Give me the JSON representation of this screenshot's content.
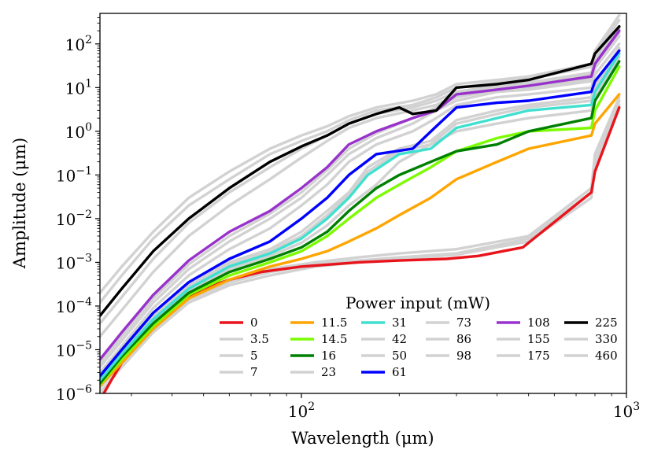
{
  "chart_data": {
    "type": "line",
    "xscale": "log",
    "yscale": "log",
    "xlabel": "Wavelength (μm)",
    "ylabel": "Amplitude (μm)",
    "xlim": [
      24,
      1000
    ],
    "ylim": [
      1e-06,
      500
    ],
    "x_ticks": [
      {
        "value": 100,
        "base": "10",
        "exp": "2"
      },
      {
        "value": 1000,
        "base": "10",
        "exp": "3"
      }
    ],
    "y_ticks": [
      {
        "value": 1e-06,
        "base": "10",
        "exp": "−6"
      },
      {
        "value": 1e-05,
        "base": "10",
        "exp": "−5"
      },
      {
        "value": 0.0001,
        "base": "10",
        "exp": "−4"
      },
      {
        "value": 0.001,
        "base": "10",
        "exp": "−3"
      },
      {
        "value": 0.01,
        "base": "10",
        "exp": "−2"
      },
      {
        "value": 0.1,
        "base": "10",
        "exp": "−1"
      },
      {
        "value": 1,
        "base": "10",
        "exp": "0"
      },
      {
        "value": 10,
        "base": "10",
        "exp": "1"
      },
      {
        "value": 100,
        "base": "10",
        "exp": "2"
      }
    ],
    "legend": {
      "title": "Power input (mW)",
      "placement": "lower-right",
      "columns": [
        [
          "0",
          "3.5",
          "5",
          "7"
        ],
        [
          "11.5",
          "14.5",
          "16",
          "23"
        ],
        [
          "31",
          "42",
          "50",
          "61"
        ],
        [
          "73",
          "86",
          "98"
        ],
        [
          "108",
          "155",
          "175"
        ],
        [
          "225",
          "330",
          "460"
        ]
      ]
    },
    "series": [
      {
        "name": "0",
        "color": "#e8141c",
        "highlight": true,
        "x": [
          24,
          26,
          28,
          32,
          36,
          42,
          50,
          60,
          75,
          100,
          150,
          200,
          280,
          350,
          480,
          780,
          800,
          950
        ],
        "y": [
          7e-07,
          2e-06,
          5e-06,
          1.5e-05,
          4e-05,
          0.00012,
          0.00025,
          0.0004,
          0.0006,
          0.0008,
          0.001,
          0.0011,
          0.0012,
          0.0014,
          0.0022,
          0.04,
          0.12,
          3.5
        ]
      },
      {
        "name": "3.5",
        "color": "#d2d2d2",
        "highlight": false,
        "x": [
          24,
          28,
          35,
          45,
          60,
          80,
          110,
          150,
          200,
          300,
          500,
          780,
          800,
          950
        ],
        "y": [
          1e-06,
          4e-06,
          2.5e-05,
          0.00012,
          0.0003,
          0.0005,
          0.0008,
          0.001,
          0.0012,
          0.0015,
          0.003,
          0.03,
          0.15,
          4
        ]
      },
      {
        "name": "5",
        "color": "#d2d2d2",
        "highlight": false,
        "x": [
          24,
          28,
          35,
          45,
          60,
          80,
          110,
          150,
          200,
          300,
          500,
          780,
          800,
          950
        ],
        "y": [
          1.3e-06,
          5e-06,
          3e-05,
          0.00014,
          0.00035,
          0.0006,
          0.0009,
          0.0011,
          0.0013,
          0.0016,
          0.0035,
          0.04,
          0.2,
          5
        ]
      },
      {
        "name": "7",
        "color": "#d2d2d2",
        "highlight": false,
        "x": [
          24,
          28,
          35,
          45,
          60,
          80,
          110,
          150,
          200,
          300,
          500,
          780,
          800,
          950
        ],
        "y": [
          1.6e-06,
          6e-06,
          3.5e-05,
          0.00016,
          0.0004,
          0.0007,
          0.001,
          0.0013,
          0.0016,
          0.002,
          0.004,
          0.05,
          0.3,
          6
        ]
      },
      {
        "name": "11.5",
        "color": "#ffa500",
        "highlight": true,
        "x": [
          24,
          28,
          35,
          45,
          60,
          80,
          100,
          120,
          140,
          170,
          200,
          250,
          300,
          400,
          500,
          780,
          800,
          950
        ],
        "y": [
          1.5e-06,
          5e-06,
          3e-05,
          0.00015,
          0.0004,
          0.0008,
          0.0012,
          0.0018,
          0.003,
          0.006,
          0.012,
          0.03,
          0.08,
          0.2,
          0.4,
          0.8,
          1.5,
          7
        ]
      },
      {
        "name": "14.5",
        "color": "#7cfc00",
        "highlight": true,
        "x": [
          24,
          28,
          35,
          45,
          60,
          80,
          100,
          120,
          140,
          170,
          200,
          250,
          300,
          400,
          500,
          780,
          800,
          950
        ],
        "y": [
          1.6e-06,
          6e-06,
          3.5e-05,
          0.00018,
          0.0005,
          0.001,
          0.0018,
          0.004,
          0.01,
          0.03,
          0.06,
          0.15,
          0.35,
          0.7,
          1,
          1.2,
          3,
          30
        ]
      },
      {
        "name": "16",
        "color": "#008000",
        "highlight": true,
        "x": [
          24,
          28,
          35,
          45,
          60,
          80,
          100,
          120,
          140,
          170,
          200,
          250,
          300,
          400,
          500,
          780,
          800,
          950
        ],
        "y": [
          1.7e-06,
          7e-06,
          4e-05,
          0.0002,
          0.0006,
          0.0012,
          0.0022,
          0.005,
          0.015,
          0.05,
          0.1,
          0.2,
          0.35,
          0.5,
          1,
          2,
          5,
          40
        ]
      },
      {
        "name": "23",
        "color": "#d2d2d2",
        "highlight": false,
        "x": [
          24,
          28,
          35,
          45,
          60,
          80,
          100,
          120,
          140,
          170,
          200,
          250,
          300,
          400,
          500,
          780,
          800,
          950
        ],
        "y": [
          1.8e-06,
          7.5e-06,
          4.5e-05,
          0.00022,
          0.0007,
          0.0014,
          0.0028,
          0.007,
          0.02,
          0.06,
          0.2,
          0.5,
          1,
          1.5,
          2,
          3,
          6,
          50
        ]
      },
      {
        "name": "31",
        "color": "#40e0d0",
        "highlight": true,
        "x": [
          24,
          28,
          35,
          45,
          60,
          80,
          100,
          120,
          140,
          160,
          200,
          250,
          300,
          400,
          500,
          780,
          800,
          950
        ],
        "y": [
          2e-06,
          8e-06,
          5e-05,
          0.00025,
          0.0008,
          0.0016,
          0.0035,
          0.01,
          0.03,
          0.1,
          0.3,
          0.4,
          1.2,
          2,
          3,
          4,
          8,
          60
        ]
      },
      {
        "name": "42",
        "color": "#d2d2d2",
        "highlight": false,
        "x": [
          24,
          28,
          35,
          45,
          60,
          80,
          100,
          120,
          140,
          160,
          200,
          250,
          300,
          400,
          500,
          780,
          800,
          950
        ],
        "y": [
          2.1e-06,
          8.5e-06,
          5.5e-05,
          0.00027,
          0.0009,
          0.0018,
          0.004,
          0.012,
          0.035,
          0.12,
          0.35,
          0.5,
          1.5,
          2.5,
          3.5,
          5,
          10,
          70
        ]
      },
      {
        "name": "50",
        "color": "#d2d2d2",
        "highlight": false,
        "x": [
          24,
          28,
          35,
          45,
          60,
          80,
          100,
          120,
          140,
          160,
          200,
          250,
          300,
          400,
          500,
          780,
          800,
          950
        ],
        "y": [
          2.2e-06,
          9e-06,
          6e-05,
          0.0003,
          0.001,
          0.002,
          0.005,
          0.015,
          0.04,
          0.15,
          0.4,
          0.6,
          1.8,
          3,
          4,
          6,
          12,
          80
        ]
      },
      {
        "name": "61",
        "color": "#0000ff",
        "highlight": true,
        "x": [
          24,
          28,
          35,
          45,
          60,
          80,
          100,
          120,
          140,
          170,
          220,
          260,
          300,
          400,
          500,
          780,
          800,
          950
        ],
        "y": [
          2.5e-06,
          1e-05,
          7e-05,
          0.00035,
          0.0012,
          0.003,
          0.01,
          0.03,
          0.1,
          0.3,
          0.4,
          1.3,
          3.5,
          4.5,
          5,
          8,
          14,
          70
        ]
      },
      {
        "name": "73",
        "color": "#d2d2d2",
        "highlight": false,
        "x": [
          24,
          28,
          35,
          45,
          60,
          80,
          100,
          120,
          140,
          170,
          220,
          260,
          300,
          400,
          500,
          780,
          800,
          950
        ],
        "y": [
          3e-06,
          1.2e-05,
          9e-05,
          0.0005,
          0.002,
          0.006,
          0.02,
          0.06,
          0.2,
          0.5,
          1,
          2,
          4,
          6,
          7,
          10,
          20,
          100
        ]
      },
      {
        "name": "86",
        "color": "#d2d2d2",
        "highlight": false,
        "x": [
          24,
          28,
          35,
          45,
          60,
          80,
          100,
          120,
          140,
          170,
          220,
          260,
          300,
          400,
          500,
          780,
          800,
          950
        ],
        "y": [
          4e-06,
          1.6e-05,
          0.00012,
          0.0007,
          0.003,
          0.01,
          0.03,
          0.1,
          0.3,
          0.7,
          1.5,
          3,
          5,
          8,
          9,
          14,
          28,
          150
        ]
      },
      {
        "name": "98",
        "color": "#d2d2d2",
        "highlight": false,
        "x": [
          24,
          28,
          35,
          45,
          60,
          80,
          100,
          120,
          140,
          170,
          220,
          260,
          300,
          400,
          500,
          780,
          800,
          950
        ],
        "y": [
          5e-06,
          2e-05,
          0.00015,
          0.0009,
          0.004,
          0.013,
          0.04,
          0.13,
          0.4,
          0.9,
          2,
          3.5,
          6,
          9,
          10,
          16,
          32,
          180
        ]
      },
      {
        "name": "108",
        "color": "#9932cc",
        "highlight": true,
        "x": [
          24,
          28,
          35,
          45,
          60,
          80,
          100,
          120,
          140,
          170,
          220,
          260,
          300,
          400,
          500,
          780,
          800,
          950
        ],
        "y": [
          6e-06,
          2.5e-05,
          0.00018,
          0.0011,
          0.005,
          0.015,
          0.05,
          0.15,
          0.5,
          1,
          2,
          3,
          7,
          9,
          11,
          18,
          35,
          200
        ]
      },
      {
        "name": "155",
        "color": "#d2d2d2",
        "highlight": false,
        "x": [
          24,
          28,
          35,
          45,
          60,
          80,
          100,
          120,
          140,
          170,
          220,
          260,
          300,
          400,
          500,
          780,
          800,
          950
        ],
        "y": [
          2e-05,
          8e-05,
          0.0006,
          0.004,
          0.02,
          0.08,
          0.25,
          0.6,
          1.2,
          2,
          3,
          4,
          7,
          10,
          12,
          20,
          40,
          220
        ]
      },
      {
        "name": "175",
        "color": "#d2d2d2",
        "highlight": false,
        "x": [
          24,
          28,
          35,
          45,
          60,
          80,
          100,
          120,
          140,
          170,
          220,
          260,
          300,
          400,
          500,
          780,
          800,
          950
        ],
        "y": [
          4e-05,
          0.00016,
          0.0012,
          0.008,
          0.04,
          0.15,
          0.4,
          0.8,
          1.5,
          2.5,
          3.5,
          5,
          8,
          11,
          13,
          22,
          45,
          250
        ]
      },
      {
        "name": "225",
        "color": "#000000",
        "highlight": true,
        "x": [
          24,
          28,
          35,
          45,
          60,
          80,
          100,
          120,
          140,
          170,
          200,
          220,
          260,
          300,
          400,
          500,
          780,
          800,
          950
        ],
        "y": [
          6e-05,
          0.00025,
          0.0018,
          0.01,
          0.05,
          0.2,
          0.45,
          0.8,
          1.5,
          2.5,
          3.5,
          2.5,
          3,
          10,
          12,
          15,
          35,
          60,
          250
        ]
      },
      {
        "name": "330",
        "color": "#d2d2d2",
        "highlight": false,
        "x": [
          24,
          28,
          35,
          45,
          60,
          80,
          100,
          120,
          140,
          170,
          220,
          260,
          300,
          400,
          500,
          780,
          800,
          950
        ],
        "y": [
          0.00012,
          0.0005,
          0.0035,
          0.02,
          0.08,
          0.3,
          0.6,
          1,
          1.8,
          3,
          4,
          6,
          10,
          13,
          16,
          30,
          60,
          350
        ]
      },
      {
        "name": "460",
        "color": "#d2d2d2",
        "highlight": false,
        "x": [
          24,
          28,
          35,
          45,
          60,
          80,
          100,
          120,
          140,
          170,
          220,
          260,
          300,
          400,
          500,
          780,
          800,
          950
        ],
        "y": [
          0.0002,
          0.0008,
          0.005,
          0.03,
          0.12,
          0.4,
          0.8,
          1.3,
          2.2,
          3.5,
          5,
          7,
          12,
          15,
          18,
          35,
          70,
          450
        ]
      }
    ]
  }
}
